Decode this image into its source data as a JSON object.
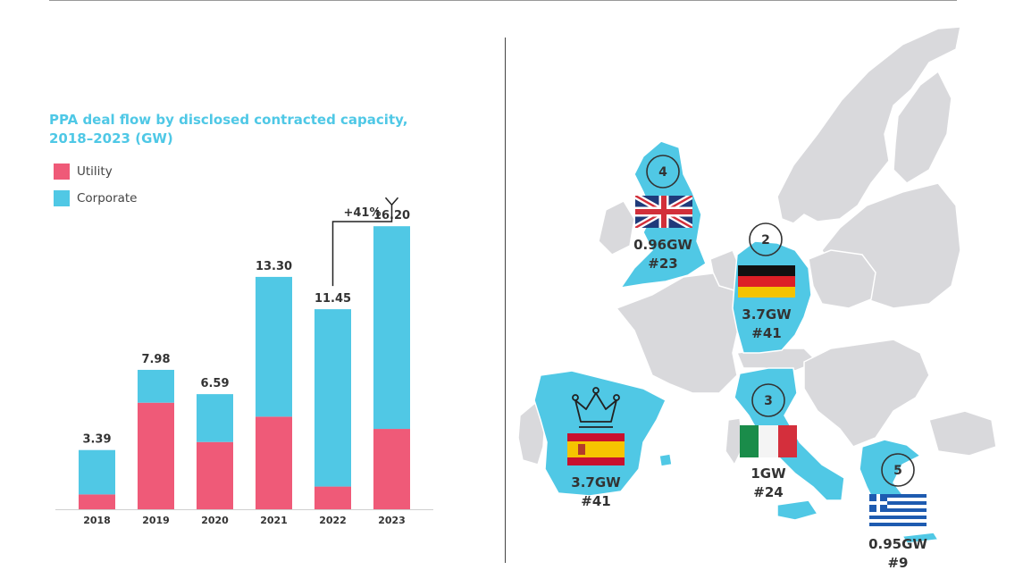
{
  "chart_data": {
    "type": "bar",
    "title": "PPA deal flow by disclosed contracted capacity, 2018–2023 (GW)",
    "categories": [
      "2018",
      "2019",
      "2020",
      "2021",
      "2022",
      "2023"
    ],
    "series": [
      {
        "name": "Utility",
        "color": "#ef5a78",
        "values": [
          0.85,
          6.1,
          3.85,
          5.3,
          1.3,
          4.6
        ]
      },
      {
        "name": "Corporate",
        "color": "#50c8e5",
        "values": [
          2.54,
          1.88,
          2.74,
          8.0,
          10.15,
          11.6
        ]
      }
    ],
    "totals": [
      "3.39",
      "7.98",
      "6.59",
      "13.30",
      "11.45",
      "16.20"
    ],
    "growth_annotation": "+41%",
    "ylim": [
      0,
      18
    ],
    "xlabel": "",
    "ylabel": "",
    "legend_placement": "top-left",
    "grid": false,
    "neutral_color": "#a8a8a8"
  },
  "map": {
    "land_color": "#d9d9dc",
    "highlight_color": "#50c8e5",
    "callouts": [
      {
        "country": "uk",
        "rank": "4",
        "capacity": "0.96GW",
        "count": "#23"
      },
      {
        "country": "germany",
        "rank": "2",
        "capacity": "3.7GW",
        "count": "#41"
      },
      {
        "country": "italy",
        "rank": "3",
        "capacity": "1GW",
        "count": "#24"
      },
      {
        "country": "spain",
        "rank": "",
        "capacity": "3.7GW",
        "count": "#41"
      },
      {
        "country": "greece",
        "rank": "5",
        "capacity": "0.95GW",
        "count": "#9"
      }
    ],
    "crown_icon": "crown-icon"
  }
}
